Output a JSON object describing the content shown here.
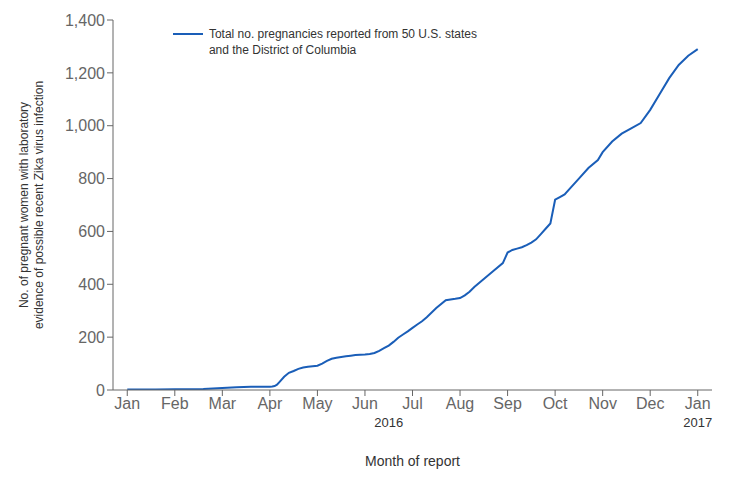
{
  "chart_data": {
    "type": "line",
    "xlabel": "Month of report",
    "ylabel": "No. of pregnant women with laboratory\nevidence of possible recent Zika virus infection",
    "x": [
      0.0,
      0.3,
      0.6,
      1.0,
      1.3,
      1.6,
      2.0,
      2.3,
      2.6,
      2.9,
      3.0,
      3.05,
      3.1,
      3.15,
      3.2,
      3.3,
      3.4,
      3.5,
      3.6,
      3.7,
      3.8,
      3.9,
      4.0,
      4.1,
      4.2,
      4.3,
      4.4,
      4.5,
      4.6,
      4.7,
      4.8,
      4.9,
      5.0,
      5.1,
      5.2,
      5.3,
      5.4,
      5.5,
      5.6,
      5.7,
      5.8,
      5.9,
      6.0,
      6.1,
      6.2,
      6.3,
      6.5,
      6.7,
      6.9,
      7.0,
      7.1,
      7.2,
      7.3,
      7.5,
      7.7,
      7.9,
      8.0,
      8.1,
      8.2,
      8.3,
      8.4,
      8.5,
      8.6,
      8.7,
      8.8,
      8.9,
      9.0,
      9.1,
      9.2,
      9.3,
      9.5,
      9.7,
      9.9,
      10.0,
      10.2,
      10.4,
      10.6,
      10.8,
      11.0,
      11.2,
      11.4,
      11.6,
      11.8,
      12.0
    ],
    "series": [
      {
        "name": "Total no. pregnancies reported from 50 U.S. states\nand the District of Columbia",
        "color": "#1a5eb8",
        "values": [
          2,
          2,
          2,
          3,
          3,
          4,
          8,
          10,
          12,
          12,
          12,
          13,
          15,
          20,
          30,
          50,
          65,
          72,
          80,
          85,
          88,
          90,
          92,
          100,
          110,
          118,
          122,
          125,
          128,
          130,
          132,
          133,
          134,
          136,
          140,
          148,
          158,
          168,
          182,
          198,
          210,
          222,
          235,
          248,
          260,
          275,
          310,
          340,
          345,
          348,
          358,
          372,
          390,
          420,
          450,
          480,
          520,
          530,
          535,
          540,
          548,
          558,
          570,
          590,
          610,
          630,
          720,
          730,
          740,
          760,
          800,
          840,
          870,
          900,
          940,
          970,
          990,
          1010,
          1060,
          1120,
          1180,
          1230,
          1265,
          1290
        ]
      }
    ],
    "xlim": [
      -0.3,
      12.3
    ],
    "xticks": [
      {
        "value": 0,
        "label": "Jan"
      },
      {
        "value": 1,
        "label": "Feb"
      },
      {
        "value": 2,
        "label": "Mar"
      },
      {
        "value": 3,
        "label": "Apr"
      },
      {
        "value": 4,
        "label": "May"
      },
      {
        "value": 5,
        "label": "Jun"
      },
      {
        "value": 6,
        "label": "Jul"
      },
      {
        "value": 7,
        "label": "Aug"
      },
      {
        "value": 8,
        "label": "Sep"
      },
      {
        "value": 9,
        "label": "Oct"
      },
      {
        "value": 10,
        "label": "Nov"
      },
      {
        "value": 11,
        "label": "Dec"
      },
      {
        "value": 12,
        "label": "Jan"
      }
    ],
    "ylim": [
      0,
      1400
    ],
    "yticks": [
      0,
      200,
      400,
      600,
      800,
      {
        "value": 1000,
        "label": "1,000"
      },
      {
        "value": 1200,
        "label": "1,200"
      },
      {
        "value": 1400,
        "label": "1,400"
      }
    ],
    "grid": false,
    "legend": "upper left",
    "annotations": [
      {
        "text": "2016",
        "x": 5.5
      },
      {
        "text": "2017",
        "x": 12.0
      }
    ]
  }
}
